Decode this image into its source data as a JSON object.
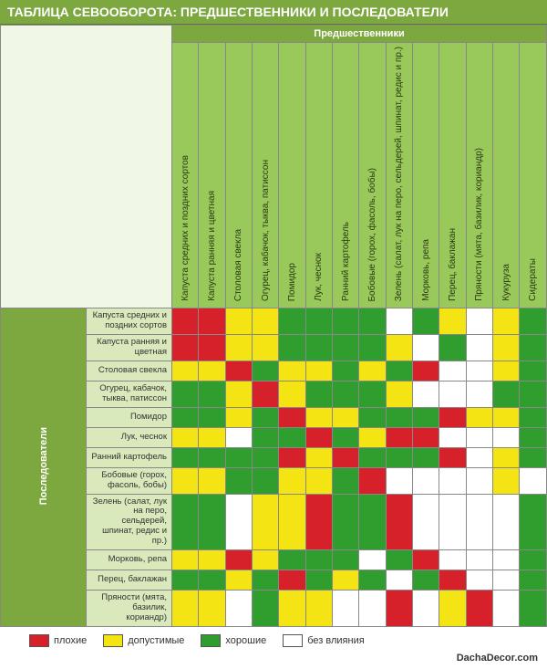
{
  "title": "ТАБЛИЦА СЕВООБОРОТА: ПРЕДШЕСТВЕННИКИ И ПОСЛЕДОВАТЕЛИ",
  "axis_top": "Предшественники",
  "axis_left": "Последователи",
  "columns": [
    "Капуста средних и поздних сортов",
    "Капуста ранняя и цветная",
    "Столовая свекла",
    "Огурец, кабачок, тыква, патиссон",
    "Помидор",
    "Лук, чеснок",
    "Ранний картофель",
    "Бобовые (горох, фасоль, бобы)",
    "Зелень (салат, лук на перо, сельдерей, шпинат, редис и пр.)",
    "Морковь, репа",
    "Перец, баклажан",
    "Пряности (мята, базилик, кориандр)",
    "Кукуруза",
    "Сидераты"
  ],
  "rows": [
    "Капуста средних и поздних сортов",
    "Капуста ранняя и цветная",
    "Столовая свекла",
    "Огурец, кабачок, тыква, патиссон",
    "Помидор",
    "Лук, чеснок",
    "Ранний картофель",
    "Бобовые (горох, фасоль, бобы)",
    "Зелень (салат, лук на перо, сельдерей, шпинат, редис и пр.)",
    "Морковь, репа",
    "Перец, баклажан",
    "Пряности (мята, базилик, кориандр)"
  ],
  "tall_rows": [
    8
  ],
  "colors": {
    "r": "#d6202a",
    "y": "#f4e413",
    "g": "#2f9e2f",
    "w": "#ffffff"
  },
  "matrix": [
    [
      "r",
      "r",
      "y",
      "y",
      "g",
      "g",
      "g",
      "g",
      "w",
      "g",
      "y",
      "w",
      "y",
      "g"
    ],
    [
      "r",
      "r",
      "y",
      "y",
      "g",
      "g",
      "g",
      "g",
      "y",
      "w",
      "g",
      "w",
      "y",
      "g"
    ],
    [
      "y",
      "y",
      "r",
      "g",
      "y",
      "y",
      "g",
      "y",
      "g",
      "r",
      "w",
      "w",
      "y",
      "g"
    ],
    [
      "g",
      "g",
      "y",
      "r",
      "y",
      "g",
      "g",
      "g",
      "y",
      "w",
      "w",
      "w",
      "g",
      "g"
    ],
    [
      "g",
      "g",
      "y",
      "g",
      "r",
      "y",
      "y",
      "g",
      "g",
      "g",
      "r",
      "y",
      "y",
      "g"
    ],
    [
      "y",
      "y",
      "w",
      "g",
      "g",
      "r",
      "g",
      "y",
      "r",
      "r",
      "w",
      "w",
      "w",
      "g"
    ],
    [
      "g",
      "g",
      "g",
      "g",
      "r",
      "y",
      "r",
      "g",
      "g",
      "g",
      "r",
      "w",
      "y",
      "g"
    ],
    [
      "y",
      "y",
      "g",
      "g",
      "y",
      "y",
      "g",
      "r",
      "w",
      "w",
      "w",
      "w",
      "y",
      "w"
    ],
    [
      "g",
      "g",
      "w",
      "y",
      "y",
      "r",
      "g",
      "g",
      "r",
      "w",
      "w",
      "w",
      "w",
      "g"
    ],
    [
      "y",
      "y",
      "r",
      "y",
      "g",
      "g",
      "g",
      "w",
      "g",
      "r",
      "w",
      "w",
      "w",
      "g"
    ],
    [
      "g",
      "g",
      "y",
      "g",
      "r",
      "g",
      "y",
      "g",
      "w",
      "g",
      "r",
      "w",
      "w",
      "g"
    ],
    [
      "y",
      "y",
      "w",
      "g",
      "y",
      "y",
      "w",
      "w",
      "r",
      "w",
      "y",
      "r",
      "w",
      "g"
    ]
  ],
  "legend": {
    "bad": "плохие",
    "ok": "допустимые",
    "good": "хорошие",
    "none": "без влияния"
  },
  "footer": "DachaDecor.com"
}
